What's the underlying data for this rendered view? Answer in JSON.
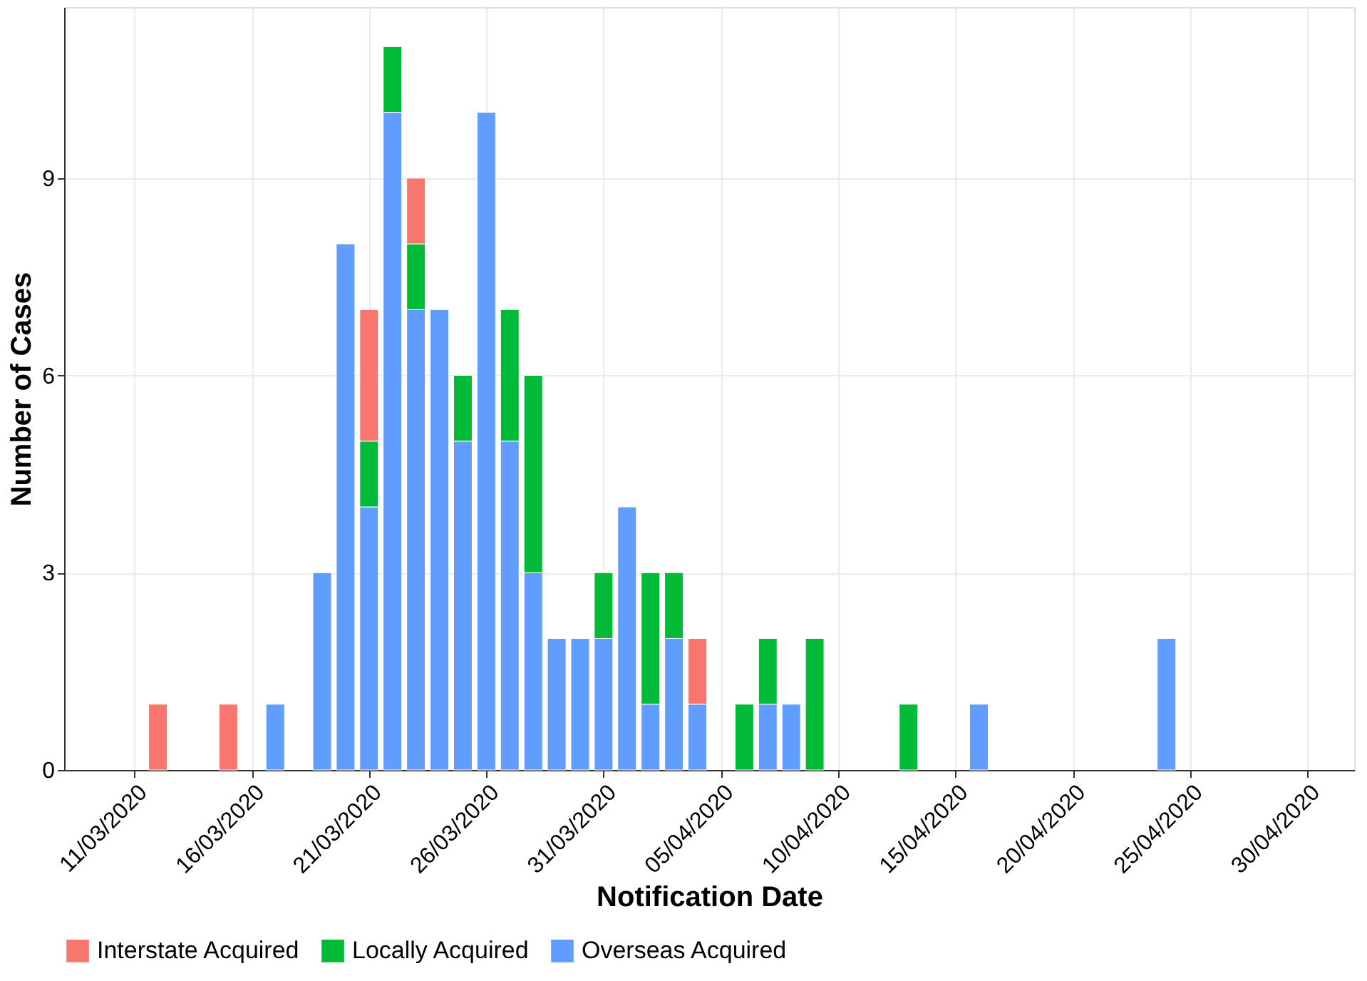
{
  "chart_data": {
    "type": "bar",
    "stacked": true,
    "xlabel": "Notification Date",
    "ylabel": "Number of Cases",
    "x": [
      "2020-03-12",
      "2020-03-15",
      "2020-03-17",
      "2020-03-19",
      "2020-03-20",
      "2020-03-21",
      "2020-03-22",
      "2020-03-23",
      "2020-03-24",
      "2020-03-25",
      "2020-03-26",
      "2020-03-27",
      "2020-03-28",
      "2020-03-29",
      "2020-03-30",
      "2020-03-31",
      "2020-04-01",
      "2020-04-02",
      "2020-04-03",
      "2020-04-04",
      "2020-04-06",
      "2020-04-07",
      "2020-04-08",
      "2020-04-09",
      "2020-04-13",
      "2020-04-16",
      "2020-04-24"
    ],
    "series": [
      {
        "name": "Overseas Acquired",
        "color": "#619cff",
        "values": [
          null,
          null,
          1,
          3,
          8,
          4,
          10,
          7,
          7,
          5,
          10,
          5,
          3,
          2,
          2,
          2,
          4,
          1,
          2,
          1,
          null,
          1,
          1,
          null,
          null,
          1,
          2
        ]
      },
      {
        "name": "Locally Acquired",
        "color": "#00ba38",
        "values": [
          null,
          null,
          null,
          null,
          null,
          1,
          1,
          1,
          null,
          1,
          null,
          2,
          3,
          null,
          null,
          1,
          null,
          2,
          1,
          null,
          1,
          1,
          null,
          2,
          1,
          null,
          null
        ]
      },
      {
        "name": "Interstate Acquired",
        "color": "#f8766d",
        "values": [
          1,
          1,
          null,
          null,
          null,
          2,
          null,
          1,
          null,
          null,
          null,
          null,
          null,
          null,
          null,
          null,
          null,
          null,
          null,
          1,
          null,
          null,
          null,
          null,
          null,
          null,
          null
        ]
      }
    ],
    "xlim": [
      "2020-03-08",
      "2020-05-02"
    ],
    "xticks": [
      {
        "value": "2020-03-11",
        "label": "11/03/2020"
      },
      {
        "value": "2020-03-16",
        "label": "16/03/2020"
      },
      {
        "value": "2020-03-21",
        "label": "21/03/2020"
      },
      {
        "value": "2020-03-26",
        "label": "26/03/2020"
      },
      {
        "value": "2020-03-31",
        "label": "31/03/2020"
      },
      {
        "value": "2020-04-05",
        "label": "05/04/2020"
      },
      {
        "value": "2020-04-10",
        "label": "10/04/2020"
      },
      {
        "value": "2020-04-15",
        "label": "15/04/2020"
      },
      {
        "value": "2020-04-20",
        "label": "20/04/2020"
      },
      {
        "value": "2020-04-25",
        "label": "25/04/2020"
      },
      {
        "value": "2020-04-30",
        "label": "30/04/2020"
      }
    ],
    "ylim": [
      0,
      11.6
    ],
    "yticks": [
      0,
      3,
      6,
      9
    ],
    "grid": true,
    "legend": "bottom"
  }
}
